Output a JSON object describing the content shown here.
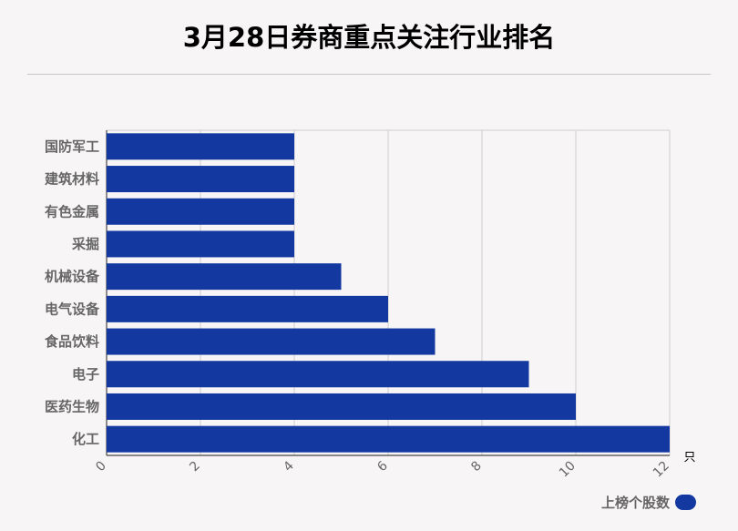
{
  "chart_data": {
    "type": "bar",
    "orientation": "horizontal",
    "title": "3月28日券商重点关注行业排名",
    "categories": [
      "国防军工",
      "建筑材料",
      "有色金属",
      "采掘",
      "机械设备",
      "电气设备",
      "食品饮料",
      "电子",
      "医药生物",
      "化工"
    ],
    "series": [
      {
        "name": "上榜个股数",
        "values": [
          4,
          4,
          4,
          4,
          5,
          6,
          7,
          9,
          10,
          12
        ]
      }
    ],
    "xlim": [
      0,
      12
    ],
    "xticks": [
      "0",
      "2",
      "4",
      "6",
      "8",
      "10",
      "12"
    ],
    "unit": "只",
    "grid": true,
    "legend_position": "bottom-right",
    "bar_color": "#1339a1"
  }
}
